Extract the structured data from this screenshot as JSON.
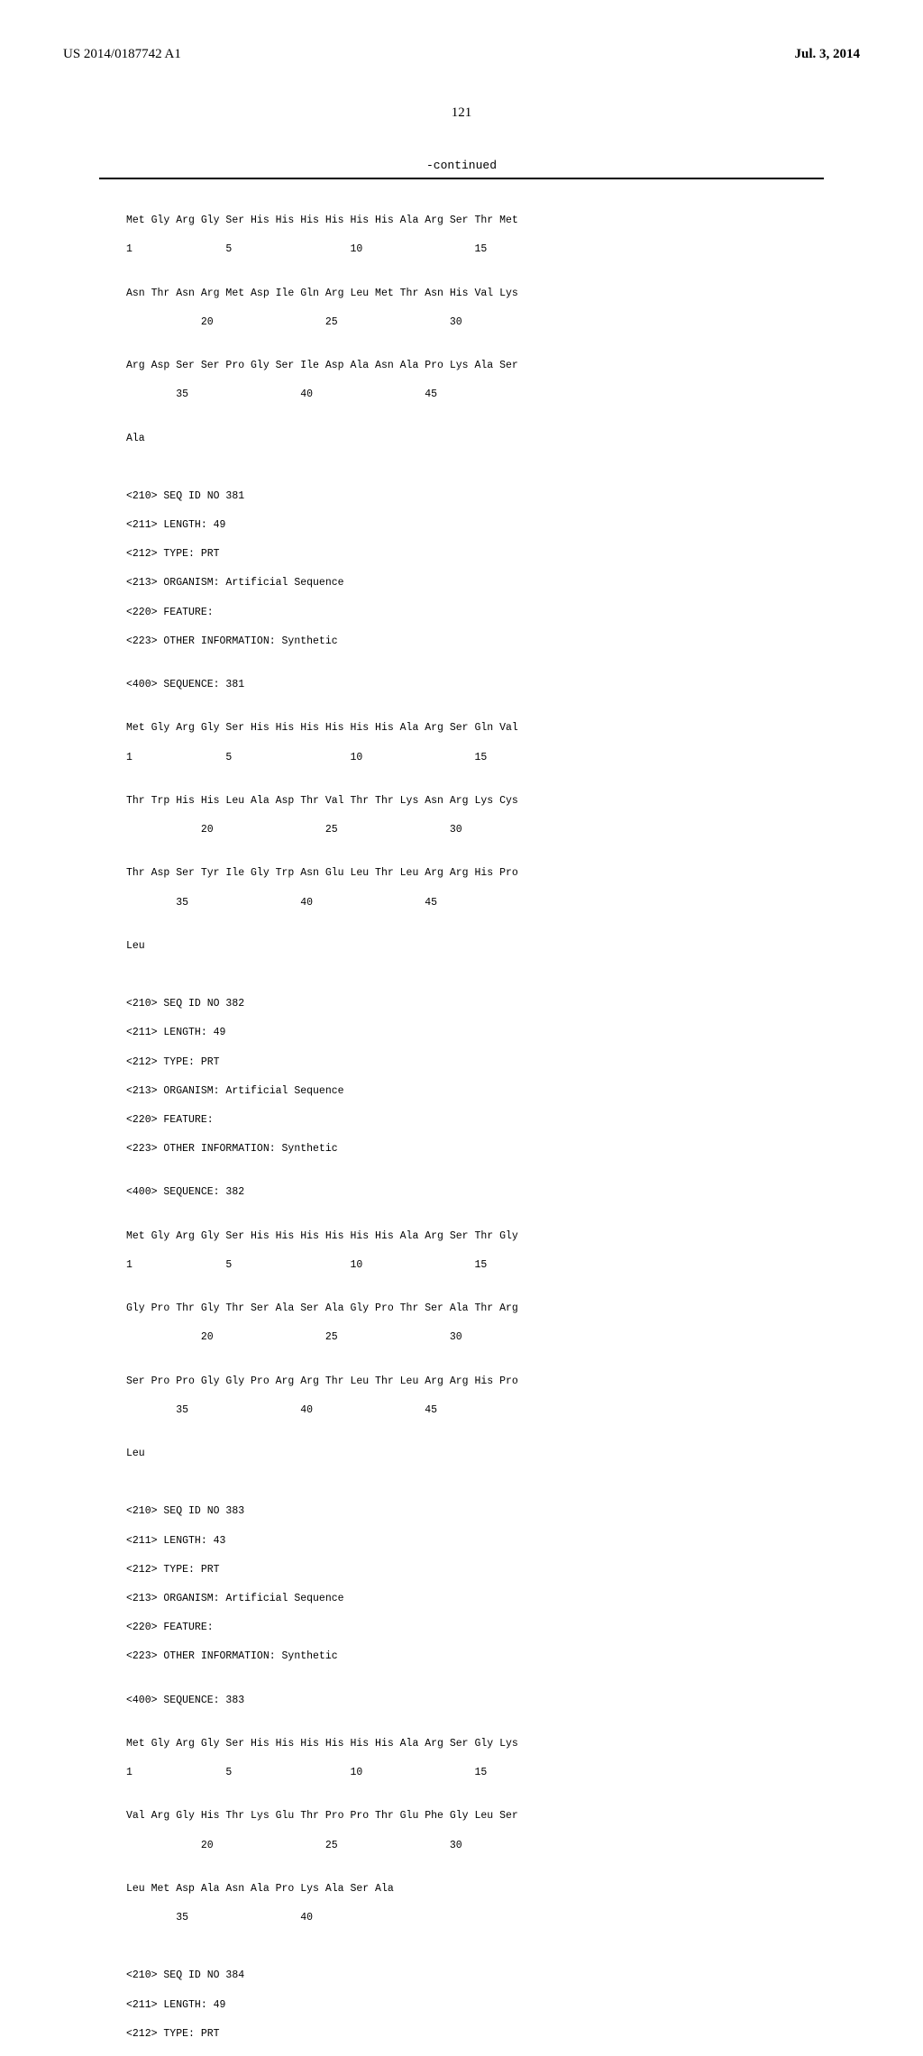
{
  "header": {
    "pubNumber": "US 2014/0187742 A1",
    "pubDate": "Jul. 3, 2014"
  },
  "pageNumber": "121",
  "continued": "-continued",
  "sequences": {
    "seq380": {
      "line1": "Met Gly Arg Gly Ser His His His His His His Ala Arg Ser Thr Met",
      "pos1": "1               5                   10                  15",
      "line2": "Asn Thr Asn Arg Met Asp Ile Gln Arg Leu Met Thr Asn His Val Lys",
      "pos2": "            20                  25                  30",
      "line3": "Arg Asp Ser Ser Pro Gly Ser Ile Asp Ala Asn Ala Pro Lys Ala Ser",
      "pos3": "        35                  40                  45",
      "line4": "Ala"
    },
    "seq381": {
      "header1": "<210> SEQ ID NO 381",
      "header2": "<211> LENGTH: 49",
      "header3": "<212> TYPE: PRT",
      "header4": "<213> ORGANISM: Artificial Sequence",
      "header5": "<220> FEATURE:",
      "header6": "<223> OTHER INFORMATION: Synthetic",
      "header7": "<400> SEQUENCE: 381",
      "line1": "Met Gly Arg Gly Ser His His His His His His Ala Arg Ser Gln Val",
      "pos1": "1               5                   10                  15",
      "line2": "Thr Trp His His Leu Ala Asp Thr Val Thr Thr Lys Asn Arg Lys Cys",
      "pos2": "            20                  25                  30",
      "line3": "Thr Asp Ser Tyr Ile Gly Trp Asn Glu Leu Thr Leu Arg Arg His Pro",
      "pos3": "        35                  40                  45",
      "line4": "Leu"
    },
    "seq382": {
      "header1": "<210> SEQ ID NO 382",
      "header2": "<211> LENGTH: 49",
      "header3": "<212> TYPE: PRT",
      "header4": "<213> ORGANISM: Artificial Sequence",
      "header5": "<220> FEATURE:",
      "header6": "<223> OTHER INFORMATION: Synthetic",
      "header7": "<400> SEQUENCE: 382",
      "line1": "Met Gly Arg Gly Ser His His His His His His Ala Arg Ser Thr Gly",
      "pos1": "1               5                   10                  15",
      "line2": "Gly Pro Thr Gly Thr Ser Ala Ser Ala Gly Pro Thr Ser Ala Thr Arg",
      "pos2": "            20                  25                  30",
      "line3": "Ser Pro Pro Gly Gly Pro Arg Arg Thr Leu Thr Leu Arg Arg His Pro",
      "pos3": "        35                  40                  45",
      "line4": "Leu"
    },
    "seq383": {
      "header1": "<210> SEQ ID NO 383",
      "header2": "<211> LENGTH: 43",
      "header3": "<212> TYPE: PRT",
      "header4": "<213> ORGANISM: Artificial Sequence",
      "header5": "<220> FEATURE:",
      "header6": "<223> OTHER INFORMATION: Synthetic",
      "header7": "<400> SEQUENCE: 383",
      "line1": "Met Gly Arg Gly Ser His His His His His His Ala Arg Ser Gly Lys",
      "pos1": "1               5                   10                  15",
      "line2": "Val Arg Gly His Thr Lys Glu Thr Pro Pro Thr Glu Phe Gly Leu Ser",
      "pos2": "            20                  25                  30",
      "line3": "Leu Met Asp Ala Asn Ala Pro Lys Ala Ser Ala",
      "pos3": "        35                  40"
    },
    "seq384": {
      "header1": "<210> SEQ ID NO 384",
      "header2": "<211> LENGTH: 49",
      "header3": "<212> TYPE: PRT"
    }
  }
}
